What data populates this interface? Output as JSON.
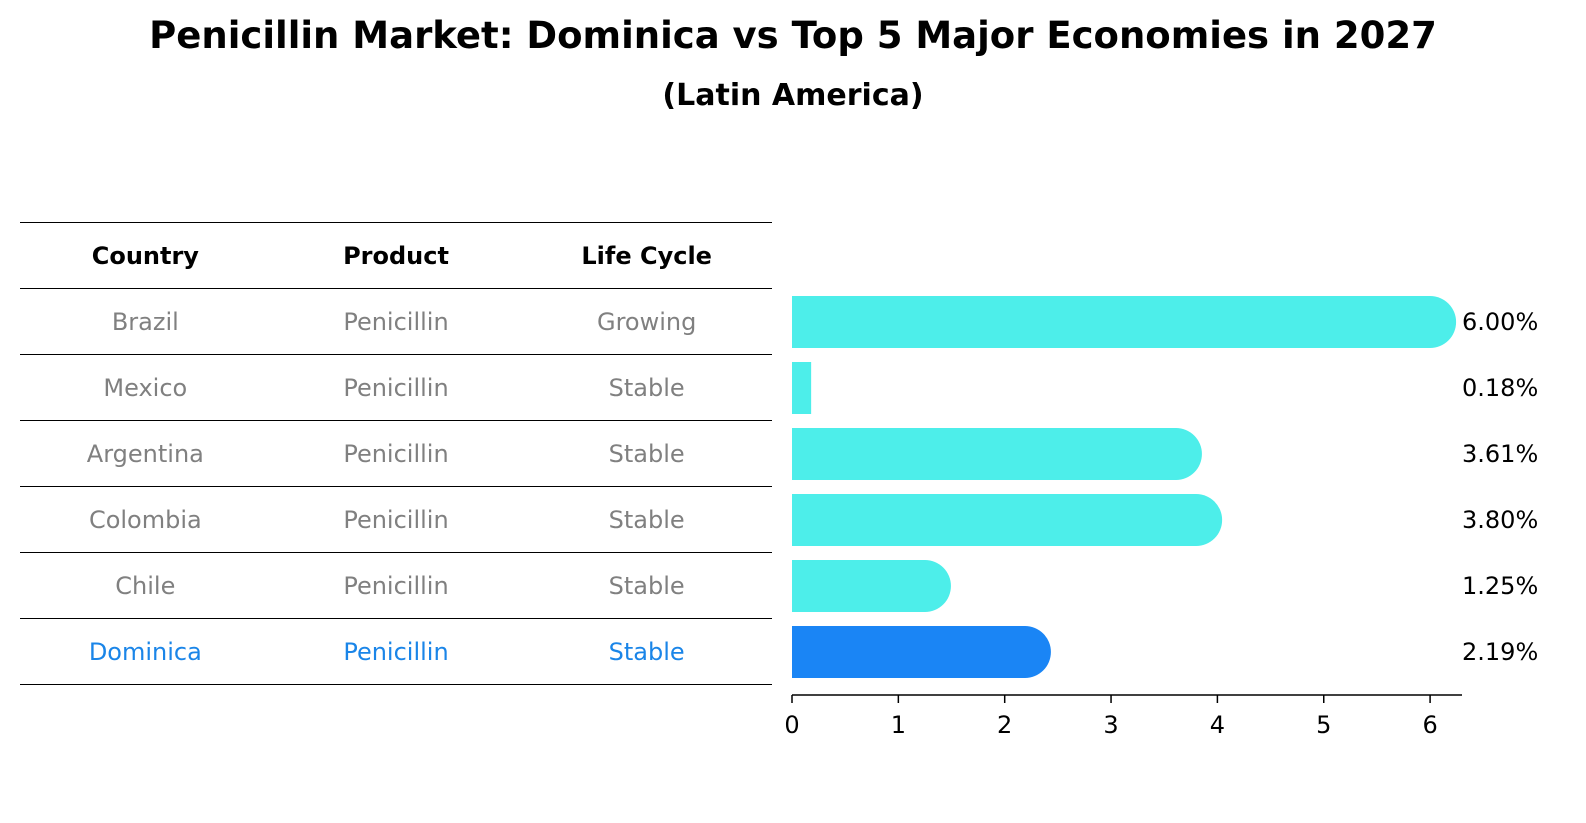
{
  "title": "Penicillin Market: Dominica vs Top 5 Major Economies in 2027",
  "subtitle": "(Latin America)",
  "table": {
    "headers": [
      "Country",
      "Product",
      "Life Cycle"
    ],
    "rows": [
      [
        "Brazil",
        "Penicillin",
        "Growing"
      ],
      [
        "Mexico",
        "Penicillin",
        "Stable"
      ],
      [
        "Argentina",
        "Penicillin",
        "Stable"
      ],
      [
        "Colombia",
        "Penicillin",
        "Stable"
      ],
      [
        "Chile",
        "Penicillin",
        "Stable"
      ],
      [
        "Dominica",
        "Penicillin",
        "Stable"
      ]
    ],
    "highlight_row": 5
  },
  "chart_data": {
    "type": "bar",
    "orientation": "horizontal",
    "categories": [
      "Brazil",
      "Mexico",
      "Argentina",
      "Colombia",
      "Chile",
      "Dominica"
    ],
    "values": [
      6.0,
      0.18,
      3.61,
      3.8,
      1.25,
      2.19
    ],
    "value_labels": [
      "6.00%",
      "0.18%",
      "3.61%",
      "3.80%",
      "1.25%",
      "2.19%"
    ],
    "xlim": [
      0,
      6.3
    ],
    "xticks": [
      "0",
      "1",
      "2",
      "3",
      "4",
      "5",
      "6"
    ],
    "highlight_index": 5,
    "colors": {
      "default": "#4deeea",
      "highlight": "#1a85f5"
    },
    "grid": false
  }
}
